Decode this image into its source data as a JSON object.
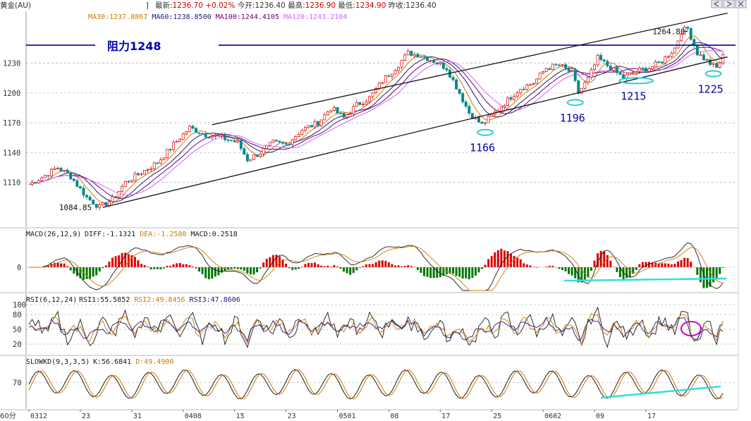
{
  "header": {
    "symbol": "黄金(AU)",
    "items": [
      {
        "label": "最新:",
        "value": "1236.70",
        "color": "#cc0000"
      },
      {
        "label": "",
        "value": "+0.02%",
        "color": "#cc0000"
      },
      {
        "label": "今开:",
        "value": "1236.40",
        "color": "#333333"
      },
      {
        "label": "最高:",
        "value": "1236.90",
        "color": "#cc0000"
      },
      {
        "label": "最低:",
        "value": "1234.90",
        "color": "#cc0000"
      },
      {
        "label": "昨收:",
        "value": "1236.40",
        "color": "#333333"
      }
    ]
  },
  "window_buttons": [
    "prev-icon",
    "next-icon",
    "close-icon"
  ],
  "period_label": "60分",
  "chart_data": [
    {
      "type": "candlestick",
      "panel": "main",
      "indicators": [
        {
          "label": "MA30:1237.8867",
          "color": "#cc7a00"
        },
        {
          "label": "MA60:1238.8500",
          "color": "#1a1a80"
        },
        {
          "label": "MA100:1244.4105",
          "color": "#6b006b"
        },
        {
          "label": "MA120:1243.2104",
          "color": "#cc66ff"
        }
      ],
      "yticks": [
        1110,
        1140,
        1170,
        1200,
        1230
      ],
      "ylim": [
        1080,
        1275
      ],
      "price_path": [
        [
          0,
          1108
        ],
        [
          5,
          1117
        ],
        [
          9,
          1125
        ],
        [
          13,
          1116
        ],
        [
          18,
          1095
        ],
        [
          22,
          1085
        ],
        [
          26,
          1093
        ],
        [
          30,
          1110
        ],
        [
          35,
          1120
        ],
        [
          40,
          1130
        ],
        [
          45,
          1148
        ],
        [
          50,
          1165
        ],
        [
          55,
          1158
        ],
        [
          60,
          1155
        ],
        [
          65,
          1150
        ],
        [
          68,
          1133
        ],
        [
          72,
          1140
        ],
        [
          76,
          1150
        ],
        [
          80,
          1148
        ],
        [
          85,
          1163
        ],
        [
          90,
          1170
        ],
        [
          94,
          1185
        ],
        [
          98,
          1175
        ],
        [
          102,
          1188
        ],
        [
          106,
          1195
        ],
        [
          110,
          1212
        ],
        [
          114,
          1225
        ],
        [
          118,
          1240
        ],
        [
          122,
          1238
        ],
        [
          126,
          1232
        ],
        [
          130,
          1225
        ],
        [
          134,
          1200
        ],
        [
          137,
          1180
        ],
        [
          141,
          1168
        ],
        [
          145,
          1180
        ],
        [
          149,
          1193
        ],
        [
          153,
          1205
        ],
        [
          157,
          1210
        ],
        [
          161,
          1225
        ],
        [
          165,
          1228
        ],
        [
          169,
          1220
        ],
        [
          171,
          1200
        ],
        [
          174,
          1214
        ],
        [
          177,
          1235
        ],
        [
          181,
          1225
        ],
        [
          185,
          1215
        ],
        [
          189,
          1222
        ],
        [
          193,
          1225
        ],
        [
          197,
          1232
        ],
        [
          201,
          1245
        ],
        [
          203,
          1262
        ],
        [
          205,
          1264.8
        ],
        [
          208,
          1240
        ],
        [
          211,
          1232
        ],
        [
          214,
          1225
        ],
        [
          216,
          1236.7
        ]
      ],
      "resistance": {
        "value": 1248,
        "label": "阻力1248"
      },
      "trend_lines": [
        {
          "from": [
            23,
            1084.85
          ],
          "to": [
            213,
            1232
          ]
        },
        {
          "from": [
            57,
            1168
          ],
          "to": [
            213,
            1276
          ]
        }
      ],
      "annotations": [
        {
          "label": "1084.85",
          "x": 23,
          "y": 1084.85
        },
        {
          "label": "1264.80",
          "x": 205,
          "y": 1264.8
        },
        {
          "label": "1166",
          "x": 142,
          "y": 1166
        },
        {
          "label": "1196",
          "x": 170,
          "y": 1196
        },
        {
          "label": "1215",
          "x": 189,
          "y": 1218
        },
        {
          "label": "1225",
          "x": 213,
          "y": 1225
        }
      ],
      "annotation_color": "#0000aa",
      "highlight_color": "#33cccc"
    },
    {
      "type": "bar",
      "panel": "MACD",
      "title": "MACD(26,12,9)",
      "indicators": [
        {
          "label": "DIFF:-1.1321",
          "color": "#1a1a1a"
        },
        {
          "label": "DEA:-1.2580",
          "color": "#cc7a00"
        },
        {
          "label": "MACD:0.2518",
          "color": "#1a1a1a"
        }
      ],
      "yticks": [
        0
      ],
      "up_color": "#dd0000",
      "down_color": "#007700"
    },
    {
      "type": "line",
      "panel": "RSI",
      "title": "RSI(6,12,24)",
      "indicators": [
        {
          "label": "RSI1:55.5852",
          "color": "#1a1a1a"
        },
        {
          "label": "RSI2:49.8456",
          "color": "#cc7a00"
        },
        {
          "label": "RSI3:47.8606",
          "color": "#1a1a80"
        }
      ],
      "yticks": [
        100,
        80,
        50,
        20
      ],
      "marker_color": "#cc00cc"
    },
    {
      "type": "line",
      "panel": "SLOWKD",
      "title": "SLOWKD(9,3,3,5)",
      "indicators": [
        {
          "label": "K:56.6841",
          "color": "#1a1a1a"
        },
        {
          "label": "D:49.4900",
          "color": "#cc7a00"
        }
      ],
      "yticks": [
        70
      ]
    }
  ],
  "x_ticks": [
    {
      "label": "0312",
      "i": 0
    },
    {
      "label": "23",
      "i": 16
    },
    {
      "label": "31",
      "i": 32
    },
    {
      "label": "0408",
      "i": 48
    },
    {
      "label": "15",
      "i": 64
    },
    {
      "label": "23",
      "i": 80
    },
    {
      "label": "0501",
      "i": 96
    },
    {
      "label": "08",
      "i": 112
    },
    {
      "label": "17",
      "i": 128
    },
    {
      "label": "25",
      "i": 144
    },
    {
      "label": "0602",
      "i": 160
    },
    {
      "label": "09",
      "i": 176
    },
    {
      "label": "17",
      "i": 192
    }
  ]
}
